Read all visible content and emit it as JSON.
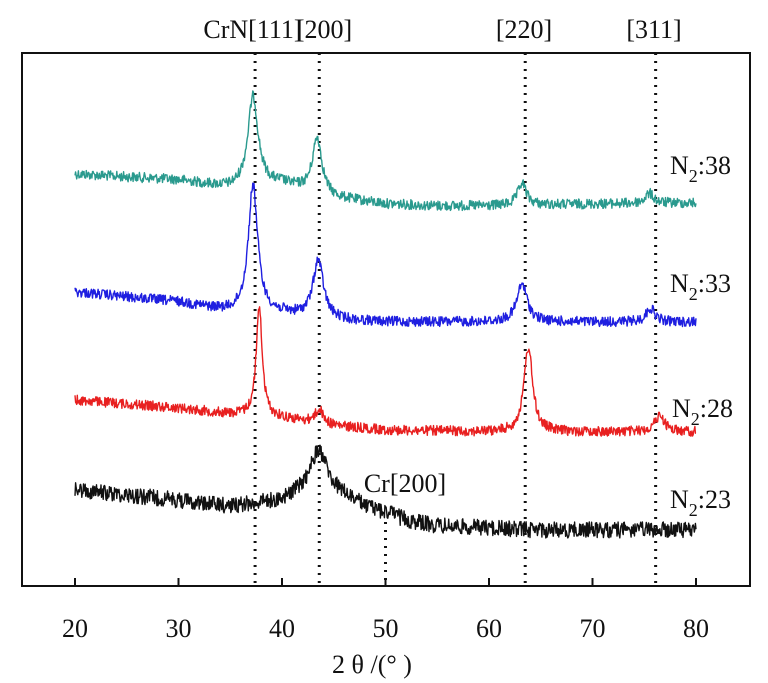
{
  "chart_data": {
    "type": "line",
    "xlabel": "2 θ /(°  )",
    "xlim": [
      15,
      85
    ],
    "xticks": [
      20,
      30,
      40,
      50,
      60,
      70,
      80
    ],
    "grid": false,
    "peak_annotations": [
      {
        "label": "CrN[111]",
        "x": 37.4
      },
      {
        "label": "[200]",
        "x": 43.6
      },
      {
        "label": "[220]",
        "x": 63.5
      },
      {
        "label": "[311]",
        "x": 76.1
      },
      {
        "label": "Cr[200]",
        "x": 50.0
      }
    ],
    "series": [
      {
        "name": "N2:38",
        "label_main": "N",
        "label_sub": "2",
        "label_rest": ":38",
        "color": "#2a9a8e",
        "baseline": 174,
        "background": [
          [
            20,
            0
          ],
          [
            30,
            6
          ],
          [
            35,
            14
          ],
          [
            40,
            10
          ],
          [
            45,
            24
          ],
          [
            50,
            30
          ],
          [
            55,
            32
          ],
          [
            60,
            32
          ],
          [
            70,
            30
          ],
          [
            80,
            29
          ]
        ],
        "peaks": [
          [
            37.2,
            90,
            0.6
          ],
          [
            43.4,
            56,
            0.55
          ],
          [
            63.2,
            22,
            0.5
          ],
          [
            75.5,
            10,
            0.5
          ]
        ],
        "noise": 5
      },
      {
        "name": "N2:33",
        "label_main": "N",
        "label_sub": "2",
        "label_rest": ":33",
        "color": "#1f1fe0",
        "baseline": 292,
        "background": [
          [
            20,
            0
          ],
          [
            30,
            10
          ],
          [
            35,
            20
          ],
          [
            40,
            22
          ],
          [
            45,
            28
          ],
          [
            50,
            30
          ],
          [
            60,
            30
          ],
          [
            70,
            30
          ],
          [
            80,
            30
          ]
        ],
        "peaks": [
          [
            37.2,
            128,
            0.55
          ],
          [
            43.5,
            58,
            0.6
          ],
          [
            63.2,
            38,
            0.6
          ],
          [
            75.6,
            14,
            0.5
          ]
        ],
        "noise": 5
      },
      {
        "name": "N2:28",
        "label_main": "N",
        "label_sub": "2",
        "label_rest": ":28",
        "color": "#e82020",
        "baseline": 400,
        "background": [
          [
            20,
            0
          ],
          [
            30,
            8
          ],
          [
            35,
            14
          ],
          [
            40,
            18
          ],
          [
            45,
            26
          ],
          [
            50,
            30
          ],
          [
            60,
            32
          ],
          [
            70,
            32
          ],
          [
            80,
            32
          ]
        ],
        "peaks": [
          [
            37.8,
            110,
            0.35
          ],
          [
            43.6,
            14,
            0.5
          ],
          [
            63.8,
            85,
            0.5
          ],
          [
            76.5,
            16,
            0.6
          ]
        ],
        "noise": 5
      },
      {
        "name": "N2:23",
        "label_main": "N",
        "label_sub": "2",
        "label_rest": ":23",
        "color": "#111111",
        "baseline": 490,
        "background": [
          [
            20,
            0
          ],
          [
            28,
            8
          ],
          [
            35,
            16
          ],
          [
            40,
            10
          ],
          [
            43,
            -4
          ],
          [
            46,
            6
          ],
          [
            50,
            28
          ],
          [
            55,
            36
          ],
          [
            65,
            40
          ],
          [
            80,
            40
          ]
        ],
        "peaks": [
          [
            43.6,
            38,
            0.9
          ],
          [
            50.2,
            6,
            1.0
          ]
        ],
        "noise": 8
      }
    ]
  }
}
